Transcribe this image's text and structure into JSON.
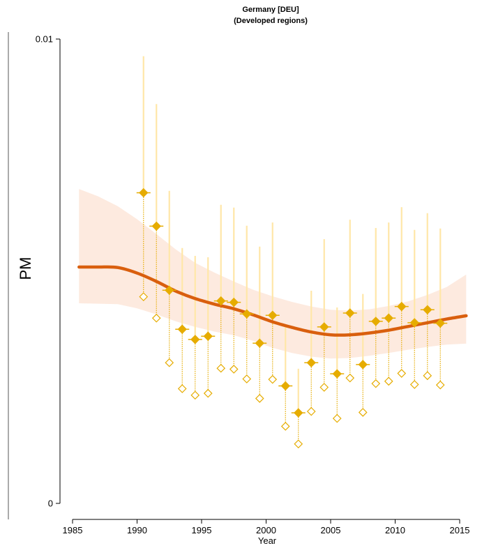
{
  "chart_data": {
    "type": "scatter",
    "title": "Germany [DEU]",
    "subtitle": "(Developed regions)",
    "xlabel": "Year",
    "ylabel": "PM",
    "xlim": [
      1985,
      2015
    ],
    "ylim": [
      0,
      0.01
    ],
    "x_ticks": [
      1985,
      1990,
      1995,
      2000,
      2005,
      2010,
      2015
    ],
    "x_tick_labels": [
      "1985",
      "1990",
      "1995",
      "2000",
      "2005",
      "2010",
      "2015"
    ],
    "y_ticks": [
      0,
      0.01
    ],
    "y_tick_labels": [
      "0",
      "0.01"
    ],
    "grid": false,
    "colors": {
      "adjusted": "#e6ac00",
      "unadjusted": "#e6ac00",
      "interval": "#ffe7a8",
      "trend": "#d95f0e",
      "band": "#fde6d9"
    },
    "series": [
      {
        "x": [
          1990.5,
          1991.5,
          1992.5,
          1993.5,
          1994.5,
          1995.5,
          1996.5,
          1997.5,
          1998.5,
          1999.5,
          2000.5,
          2001.5,
          2002.5,
          2003.5,
          2004.5,
          2005.5,
          2006.5,
          2007.5,
          2008.5,
          2009.5,
          2010.5,
          2011.5,
          2012.5,
          2013.5
        ],
        "adjusted": [
          0.00669,
          0.00597,
          0.00459,
          0.00375,
          0.00353,
          0.0036,
          0.00436,
          0.00433,
          0.00408,
          0.00345,
          0.00405,
          0.00253,
          0.00195,
          0.00303,
          0.0038,
          0.00279,
          0.0041,
          0.00299,
          0.00392,
          0.00399,
          0.00424,
          0.00389,
          0.00417,
          0.00388
        ],
        "unadjusted": [
          0.00445,
          0.00399,
          0.00303,
          0.00247,
          0.00233,
          0.00237,
          0.00291,
          0.00289,
          0.00268,
          0.00226,
          0.00267,
          0.00166,
          0.00128,
          0.00198,
          0.0025,
          0.00183,
          0.0027,
          0.00196,
          0.00258,
          0.00263,
          0.0028,
          0.00256,
          0.00275,
          0.00255
        ],
        "upper": [
          0.00963,
          0.0086,
          0.00673,
          0.0055,
          0.00533,
          0.0053,
          0.00643,
          0.00637,
          0.00598,
          0.00553,
          0.00605,
          0.00383,
          0.0029,
          0.00458,
          0.00569,
          0.00422,
          0.00611,
          0.00451,
          0.00593,
          0.00605,
          0.00638,
          0.00589,
          0.00625,
          0.00592
        ]
      }
    ],
    "trend": {
      "x": [
        1985.5,
        1987,
        1988.5,
        1990,
        1991.5,
        1993,
        1994.5,
        1996,
        1997.5,
        1999,
        2000.5,
        2002,
        2003.5,
        2005,
        2006.5,
        2008,
        2009.5,
        2011,
        2012.5,
        2014,
        2015.5
      ],
      "y": [
        0.00509,
        0.00509,
        0.00508,
        0.00496,
        0.00478,
        0.00457,
        0.00441,
        0.00429,
        0.00419,
        0.00406,
        0.00391,
        0.00379,
        0.00369,
        0.00363,
        0.00363,
        0.00367,
        0.00373,
        0.00381,
        0.00389,
        0.00397,
        0.00404
      ],
      "lower": [
        0.00431,
        0.0043,
        0.00429,
        0.0042,
        0.00407,
        0.00392,
        0.0038,
        0.0037,
        0.00362,
        0.0035,
        0.00335,
        0.00324,
        0.00316,
        0.00312,
        0.00313,
        0.00318,
        0.00324,
        0.00331,
        0.00337,
        0.00342,
        0.00344
      ],
      "upper": [
        0.00677,
        0.00661,
        0.0064,
        0.00612,
        0.0058,
        0.00547,
        0.00518,
        0.00497,
        0.00478,
        0.0046,
        0.00446,
        0.00434,
        0.00424,
        0.00417,
        0.00415,
        0.00418,
        0.00425,
        0.00435,
        0.00449,
        0.00466,
        0.00493
      ]
    }
  }
}
